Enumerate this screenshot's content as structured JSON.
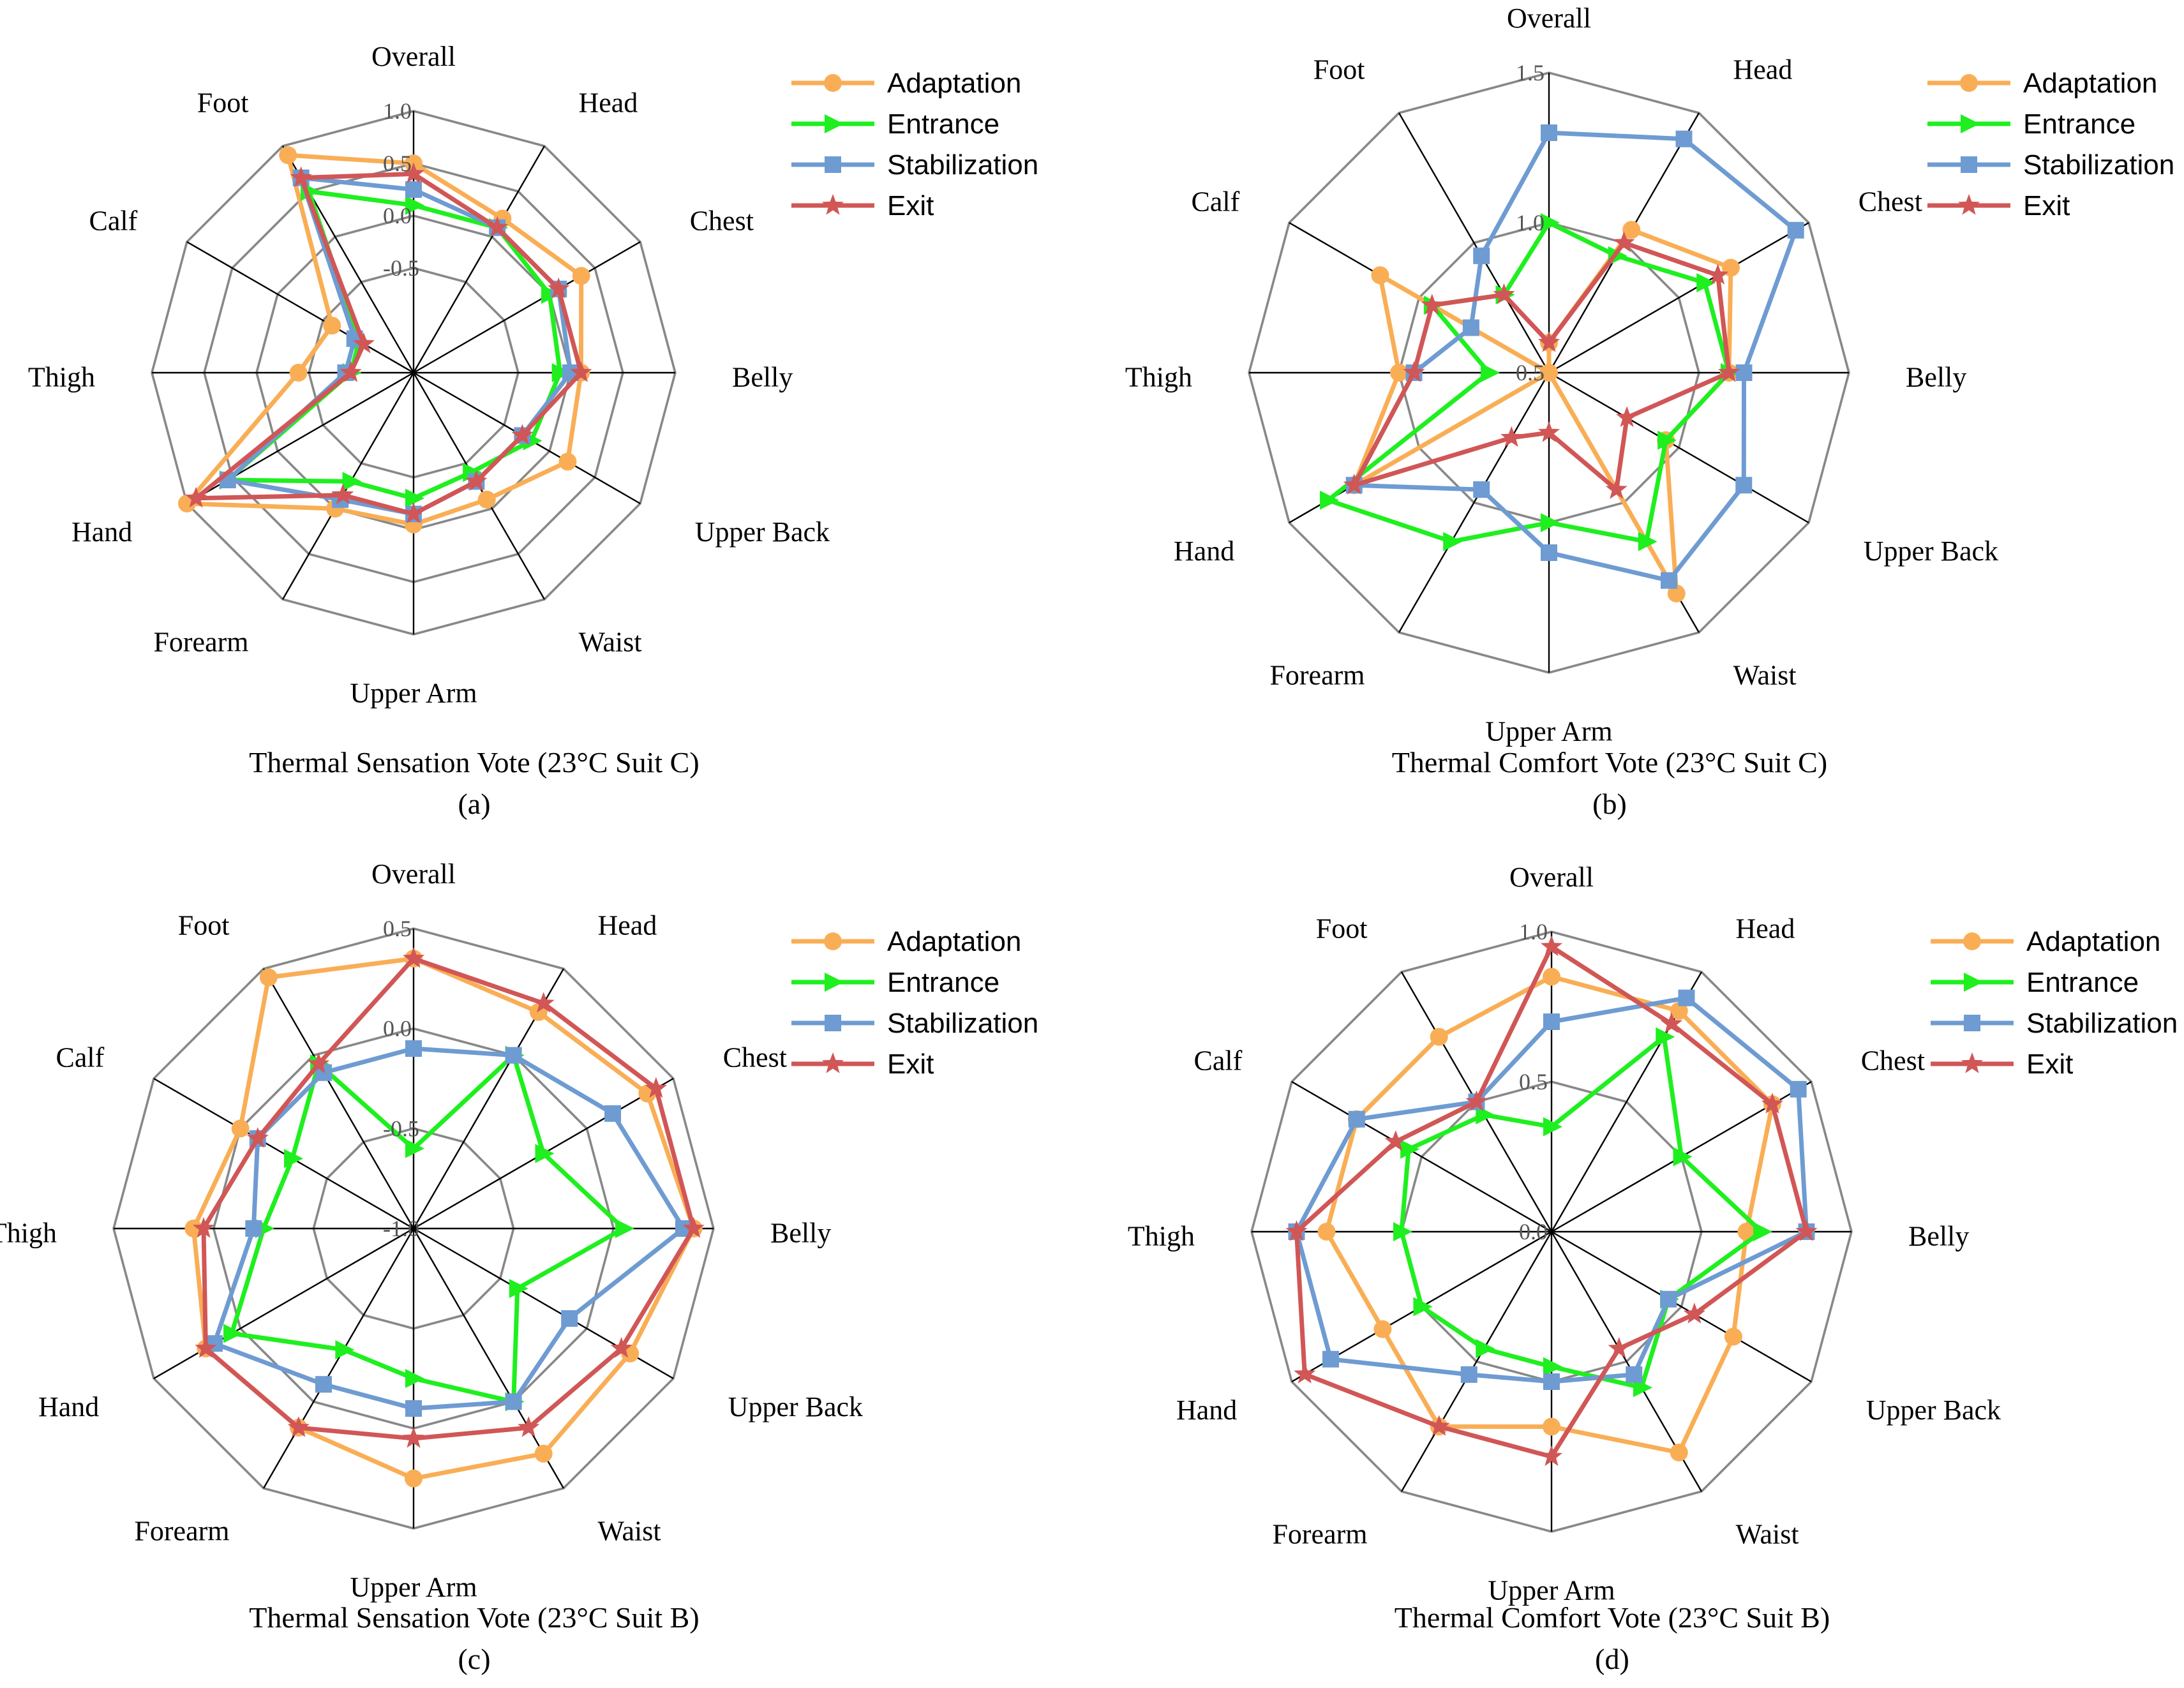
{
  "categories": [
    "Overall",
    "Head",
    "Chest",
    "Belly",
    "Upper Back",
    "Waist",
    "Upper Arm",
    "Forearm",
    "Hand",
    "Thigh",
    "Calf",
    "Foot"
  ],
  "series_names": [
    "Adaptation",
    "Entrance",
    "Stabilization",
    "Exit"
  ],
  "colors": {
    "Adaptation": "#F9AE55",
    "Entrance": "#1FEF1F",
    "Stabilization": "#6E9BD2",
    "Exit": "#D15656",
    "grid": "#888888",
    "spoke": "#000000"
  },
  "chart_data": [
    {
      "type": "radar",
      "title": "Thermal Sensation Vote (23°C Suit C)",
      "label": "(a)",
      "rmin": -1.5,
      "rmax": 1.0,
      "ticks": [
        1.0,
        0.5,
        0.0,
        -0.5
      ],
      "tick_labels": [
        "1.0",
        "0.5",
        "0.0",
        "-0.5"
      ],
      "categories": [
        "Overall",
        "Head",
        "Chest",
        "Belly",
        "Upper Back",
        "Waist",
        "Upper Arm",
        "Forearm",
        "Hand",
        "Thigh",
        "Calf",
        "Foot"
      ],
      "series": [
        {
          "name": "Adaptation",
          "values": [
            0.5,
            0.2,
            0.35,
            0.1,
            0.2,
            -0.1,
            -0.05,
            0.0,
            1.0,
            -0.4,
            -0.6,
            0.9
          ]
        },
        {
          "name": "Entrance",
          "values": [
            0.1,
            0.1,
            0.0,
            -0.1,
            -0.2,
            -0.4,
            -0.3,
            -0.3,
            0.55,
            -0.9,
            -0.9,
            0.5
          ]
        },
        {
          "name": "Stabilization",
          "values": [
            0.25,
            0.1,
            0.1,
            0.0,
            -0.3,
            -0.3,
            -0.15,
            -0.1,
            0.55,
            -0.85,
            -0.85,
            0.65
          ]
        },
        {
          "name": "Exit",
          "values": [
            0.4,
            0.1,
            0.1,
            0.1,
            -0.3,
            -0.3,
            -0.15,
            -0.15,
            0.9,
            -0.9,
            -0.95,
            0.65
          ]
        }
      ]
    },
    {
      "type": "radar",
      "title": "Thermal Comfort Vote (23°C Suit C)",
      "label": "(b)",
      "rmin": 0.5,
      "rmax": 1.5,
      "ticks": [
        1.5,
        1.0,
        0.5
      ],
      "tick_labels": [
        "1.5",
        "1.0",
        "0.5"
      ],
      "categories": [
        "Overall",
        "Head",
        "Chest",
        "Belly",
        "Upper Back",
        "Waist",
        "Upper Arm",
        "Forearm",
        "Hand",
        "Thigh",
        "Calf",
        "Foot"
      ],
      "series": [
        {
          "name": "Adaptation",
          "values": [
            0.6,
            1.05,
            1.2,
            1.1,
            0.95,
            1.35,
            0.5,
            0.5,
            1.25,
            1.0,
            1.15,
            0.5
          ]
        },
        {
          "name": "Entrance",
          "values": [
            1.0,
            0.95,
            1.1,
            1.1,
            0.95,
            1.15,
            1.0,
            1.15,
            1.35,
            0.7,
            0.95,
            0.8
          ]
        },
        {
          "name": "Stabilization",
          "values": [
            1.3,
            1.4,
            1.45,
            1.15,
            1.25,
            1.3,
            1.1,
            0.95,
            1.25,
            0.95,
            0.8,
            0.95
          ]
        },
        {
          "name": "Exit",
          "values": [
            0.6,
            1.0,
            1.15,
            1.1,
            0.8,
            0.95,
            0.7,
            0.75,
            1.25,
            0.95,
            0.95,
            0.8
          ]
        }
      ]
    },
    {
      "type": "radar",
      "title": "Thermal Sensation Vote (23°C Suit B)",
      "label": "(c)",
      "rmin": -1.0,
      "rmax": 0.5,
      "ticks": [
        0.5,
        0.0,
        -0.5,
        -1.0
      ],
      "tick_labels": [
        "0.5",
        "0.0",
        "-0.5",
        "-1.0"
      ],
      "categories": [
        "Overall",
        "Head",
        "Chest",
        "Belly",
        "Upper Back",
        "Waist",
        "Upper Arm",
        "Forearm",
        "Hand",
        "Thigh",
        "Calf",
        "Foot"
      ],
      "series": [
        {
          "name": "Adaptation",
          "values": [
            0.35,
            0.25,
            0.35,
            0.4,
            0.25,
            0.3,
            0.25,
            0.15,
            0.2,
            0.1,
            0.0,
            0.45
          ]
        },
        {
          "name": "Entrance",
          "values": [
            -0.6,
            0.0,
            -0.25,
            0.05,
            -0.4,
            0.0,
            -0.25,
            -0.3,
            0.05,
            -0.25,
            -0.3,
            -0.05
          ]
        },
        {
          "name": "Stabilization",
          "values": [
            -0.1,
            0.0,
            0.15,
            0.35,
            -0.1,
            0.0,
            -0.1,
            -0.1,
            0.15,
            -0.2,
            -0.1,
            -0.1
          ]
        },
        {
          "name": "Exit",
          "values": [
            0.35,
            0.3,
            0.4,
            0.4,
            0.2,
            0.15,
            0.05,
            0.15,
            0.2,
            0.05,
            -0.1,
            -0.05
          ]
        }
      ]
    },
    {
      "type": "radar",
      "title": "Thermal Comfort Vote (23°C Suit B)",
      "label": "(d)",
      "rmin": 0.0,
      "rmax": 1.0,
      "ticks": [
        1.0,
        0.5,
        0.0
      ],
      "tick_labels": [
        "1.0",
        "0.5",
        "0.0"
      ],
      "categories": [
        "Overall",
        "Head",
        "Chest",
        "Belly",
        "Upper Back",
        "Waist",
        "Upper Arm",
        "Forearm",
        "Hand",
        "Thigh",
        "Calf",
        "Foot"
      ],
      "series": [
        {
          "name": "Adaptation",
          "values": [
            0.85,
            0.85,
            0.85,
            0.65,
            0.7,
            0.85,
            0.65,
            0.75,
            0.65,
            0.75,
            0.75,
            0.75
          ]
        },
        {
          "name": "Entrance",
          "values": [
            0.35,
            0.75,
            0.5,
            0.7,
            0.45,
            0.6,
            0.45,
            0.45,
            0.5,
            0.5,
            0.55,
            0.45
          ]
        },
        {
          "name": "Stabilization",
          "values": [
            0.7,
            0.9,
            0.95,
            0.85,
            0.45,
            0.55,
            0.5,
            0.55,
            0.85,
            0.85,
            0.75,
            0.5
          ]
        },
        {
          "name": "Exit",
          "values": [
            0.95,
            0.8,
            0.85,
            0.85,
            0.55,
            0.45,
            0.75,
            0.75,
            0.95,
            0.85,
            0.6,
            0.5
          ]
        }
      ]
    }
  ]
}
